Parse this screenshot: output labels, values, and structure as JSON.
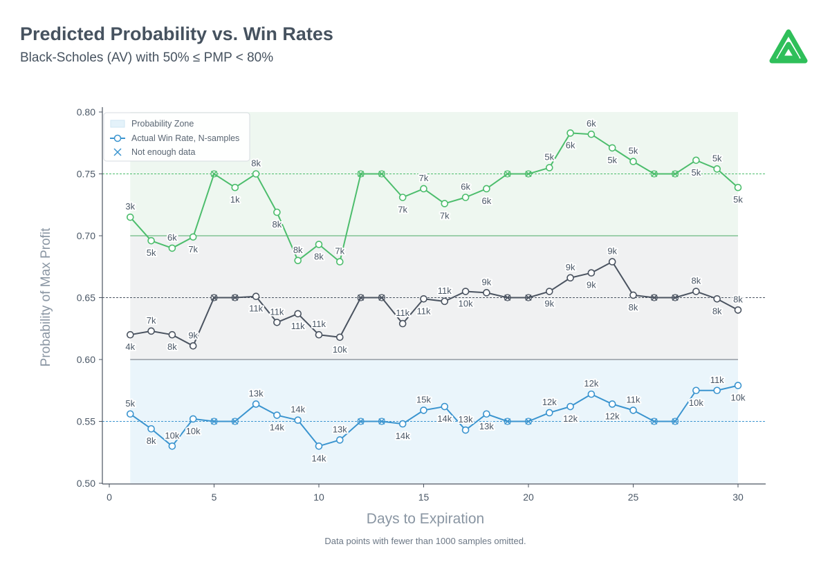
{
  "header": {
    "title": "Predicted Probability vs. Win Rates",
    "subtitle": "Black-Scholes (AV) with 50% ≤ PMP < 80%"
  },
  "footnote": "Data points with fewer than 1000 samples omitted.",
  "logo_icon": "tastytrade-logo-icon",
  "colors": {
    "green": "#4cbd6c",
    "gray": "#4a5360",
    "blue": "#3a94cf",
    "zone_green": "#eef7f0",
    "zone_gray": "#f0f1f2",
    "zone_blue": "#eaf5fb",
    "zone_line_green": "#9ccfab",
    "zone_line_gray": "#aab0b7",
    "zone_line_blue": "#a9d4ec",
    "axis": "#4a5360"
  },
  "chart_data": {
    "type": "line",
    "xlabel": "Days to Expiration",
    "ylabel": "Probability of Max Profit",
    "xlim": [
      -0.5,
      31.5
    ],
    "ylim": [
      0.5,
      0.8
    ],
    "xticks": [
      "0",
      "5",
      "10",
      "15",
      "20",
      "25",
      "30"
    ],
    "yticks": [
      "0.50",
      "0.55",
      "0.60",
      "0.65",
      "0.70",
      "0.75",
      "0.80"
    ],
    "grid": false,
    "legend_position": "top-left",
    "legend": [
      {
        "label": "Probability Zone",
        "kind": "zone"
      },
      {
        "label": "Actual Win Rate, N-samples",
        "kind": "line"
      },
      {
        "label": "Not enough data",
        "kind": "x"
      }
    ],
    "zones": [
      {
        "from": 0.7,
        "to": 0.8,
        "color": "zone_green",
        "line": "zone_line_green"
      },
      {
        "from": 0.6,
        "to": 0.7,
        "color": "zone_gray",
        "line": "zone_line_gray"
      },
      {
        "from": 0.5,
        "to": 0.6,
        "color": "zone_blue",
        "line": "zone_line_blue"
      }
    ],
    "zone_x_range": [
      1,
      30
    ],
    "reference_lines": [
      {
        "y": 0.75,
        "color": "green"
      },
      {
        "y": 0.65,
        "color": "gray"
      },
      {
        "y": 0.55,
        "color": "blue"
      }
    ],
    "series": [
      {
        "color": "green",
        "points": [
          {
            "x": 1,
            "y": 0.715,
            "label": "3k",
            "pos": "above"
          },
          {
            "x": 2,
            "y": 0.696,
            "label": "5k",
            "pos": "below"
          },
          {
            "x": 3,
            "y": 0.69,
            "label": "6k",
            "pos": "above"
          },
          {
            "x": 4,
            "y": 0.699,
            "label": "7k",
            "pos": "below"
          },
          {
            "x": 5,
            "y": 0.75,
            "missing": true
          },
          {
            "x": 6,
            "y": 0.739,
            "label": "1k",
            "pos": "below"
          },
          {
            "x": 7,
            "y": 0.75,
            "label": "8k",
            "pos": "above"
          },
          {
            "x": 8,
            "y": 0.719,
            "label": "8k",
            "pos": "below"
          },
          {
            "x": 9,
            "y": 0.68,
            "label": "8k",
            "pos": "above"
          },
          {
            "x": 10,
            "y": 0.693,
            "label": "8k",
            "pos": "below"
          },
          {
            "x": 11,
            "y": 0.679,
            "label": "7k",
            "pos": "above"
          },
          {
            "x": 12,
            "y": 0.75,
            "missing": true
          },
          {
            "x": 13,
            "y": 0.75,
            "missing": true
          },
          {
            "x": 14,
            "y": 0.731,
            "label": "7k",
            "pos": "below"
          },
          {
            "x": 15,
            "y": 0.738,
            "label": "7k",
            "pos": "above"
          },
          {
            "x": 16,
            "y": 0.726,
            "label": "7k",
            "pos": "below"
          },
          {
            "x": 17,
            "y": 0.731,
            "label": "6k",
            "pos": "above"
          },
          {
            "x": 18,
            "y": 0.738,
            "label": "6k",
            "pos": "below"
          },
          {
            "x": 19,
            "y": 0.75,
            "missing": true
          },
          {
            "x": 20,
            "y": 0.75,
            "missing": true
          },
          {
            "x": 21,
            "y": 0.755,
            "label": "5k",
            "pos": "above"
          },
          {
            "x": 22,
            "y": 0.783,
            "label": "6k",
            "pos": "below"
          },
          {
            "x": 23,
            "y": 0.782,
            "label": "6k",
            "pos": "above"
          },
          {
            "x": 24,
            "y": 0.771,
            "label": "5k",
            "pos": "below"
          },
          {
            "x": 25,
            "y": 0.76,
            "label": "5k",
            "pos": "above"
          },
          {
            "x": 26,
            "y": 0.75,
            "missing": true
          },
          {
            "x": 27,
            "y": 0.75,
            "missing": true
          },
          {
            "x": 28,
            "y": 0.761,
            "label": "5k",
            "pos": "below"
          },
          {
            "x": 29,
            "y": 0.754,
            "label": "5k",
            "pos": "above"
          },
          {
            "x": 30,
            "y": 0.739,
            "label": "5k",
            "pos": "below"
          }
        ]
      },
      {
        "color": "gray",
        "points": [
          {
            "x": 1,
            "y": 0.62,
            "label": "4k",
            "pos": "below"
          },
          {
            "x": 2,
            "y": 0.623,
            "label": "7k",
            "pos": "above"
          },
          {
            "x": 3,
            "y": 0.62,
            "label": "8k",
            "pos": "below"
          },
          {
            "x": 4,
            "y": 0.611,
            "label": "9k",
            "pos": "above"
          },
          {
            "x": 5,
            "y": 0.65,
            "missing": true
          },
          {
            "x": 6,
            "y": 0.65,
            "missing": true
          },
          {
            "x": 7,
            "y": 0.651,
            "label": "11k",
            "pos": "below"
          },
          {
            "x": 8,
            "y": 0.63,
            "label": "11k",
            "pos": "above"
          },
          {
            "x": 9,
            "y": 0.637,
            "label": "11k",
            "pos": "below"
          },
          {
            "x": 10,
            "y": 0.62,
            "label": "11k",
            "pos": "above"
          },
          {
            "x": 11,
            "y": 0.618,
            "label": "10k",
            "pos": "below"
          },
          {
            "x": 12,
            "y": 0.65,
            "missing": true
          },
          {
            "x": 13,
            "y": 0.65,
            "missing": true
          },
          {
            "x": 14,
            "y": 0.629,
            "label": "11k",
            "pos": "above"
          },
          {
            "x": 15,
            "y": 0.649,
            "label": "11k",
            "pos": "below"
          },
          {
            "x": 16,
            "y": 0.647,
            "label": "11k",
            "pos": "above"
          },
          {
            "x": 17,
            "y": 0.655,
            "label": "10k",
            "pos": "below"
          },
          {
            "x": 18,
            "y": 0.654,
            "label": "9k",
            "pos": "above"
          },
          {
            "x": 19,
            "y": 0.65,
            "missing": true
          },
          {
            "x": 20,
            "y": 0.65,
            "missing": true
          },
          {
            "x": 21,
            "y": 0.655,
            "label": "9k",
            "pos": "below"
          },
          {
            "x": 22,
            "y": 0.666,
            "label": "9k",
            "pos": "above"
          },
          {
            "x": 23,
            "y": 0.67,
            "label": "9k",
            "pos": "below"
          },
          {
            "x": 24,
            "y": 0.679,
            "label": "9k",
            "pos": "above"
          },
          {
            "x": 25,
            "y": 0.652,
            "label": "8k",
            "pos": "below"
          },
          {
            "x": 26,
            "y": 0.65,
            "missing": true
          },
          {
            "x": 27,
            "y": 0.65,
            "missing": true
          },
          {
            "x": 28,
            "y": 0.655,
            "label": "8k",
            "pos": "above"
          },
          {
            "x": 29,
            "y": 0.649,
            "label": "8k",
            "pos": "below"
          },
          {
            "x": 30,
            "y": 0.64,
            "label": "8k",
            "pos": "above"
          }
        ]
      },
      {
        "color": "blue",
        "points": [
          {
            "x": 1,
            "y": 0.556,
            "label": "5k",
            "pos": "above"
          },
          {
            "x": 2,
            "y": 0.544,
            "label": "8k",
            "pos": "below"
          },
          {
            "x": 3,
            "y": 0.53,
            "label": "10k",
            "pos": "above"
          },
          {
            "x": 4,
            "y": 0.552,
            "label": "10k",
            "pos": "below"
          },
          {
            "x": 5,
            "y": 0.55,
            "missing": true
          },
          {
            "x": 6,
            "y": 0.55,
            "missing": true
          },
          {
            "x": 7,
            "y": 0.564,
            "label": "13k",
            "pos": "above"
          },
          {
            "x": 8,
            "y": 0.555,
            "label": "14k",
            "pos": "below"
          },
          {
            "x": 9,
            "y": 0.551,
            "label": "14k",
            "pos": "above"
          },
          {
            "x": 10,
            "y": 0.53,
            "label": "14k",
            "pos": "below"
          },
          {
            "x": 11,
            "y": 0.535,
            "label": "13k",
            "pos": "above"
          },
          {
            "x": 12,
            "y": 0.55,
            "missing": true
          },
          {
            "x": 13,
            "y": 0.55,
            "missing": true
          },
          {
            "x": 14,
            "y": 0.548,
            "label": "14k",
            "pos": "below"
          },
          {
            "x": 15,
            "y": 0.559,
            "label": "15k",
            "pos": "above"
          },
          {
            "x": 16,
            "y": 0.562,
            "label": "14k",
            "pos": "below"
          },
          {
            "x": 17,
            "y": 0.543,
            "label": "13k",
            "pos": "above"
          },
          {
            "x": 18,
            "y": 0.556,
            "label": "13k",
            "pos": "below"
          },
          {
            "x": 19,
            "y": 0.55,
            "missing": true
          },
          {
            "x": 20,
            "y": 0.55,
            "missing": true
          },
          {
            "x": 21,
            "y": 0.557,
            "label": "12k",
            "pos": "above"
          },
          {
            "x": 22,
            "y": 0.562,
            "label": "12k",
            "pos": "below"
          },
          {
            "x": 23,
            "y": 0.572,
            "label": "12k",
            "pos": "above"
          },
          {
            "x": 24,
            "y": 0.564,
            "label": "12k",
            "pos": "below"
          },
          {
            "x": 25,
            "y": 0.559,
            "label": "11k",
            "pos": "above"
          },
          {
            "x": 26,
            "y": 0.55,
            "missing": true
          },
          {
            "x": 27,
            "y": 0.55,
            "missing": true
          },
          {
            "x": 28,
            "y": 0.575,
            "label": "10k",
            "pos": "below"
          },
          {
            "x": 29,
            "y": 0.575,
            "label": "11k",
            "pos": "above"
          },
          {
            "x": 30,
            "y": 0.579,
            "label": "10k",
            "pos": "below"
          }
        ]
      }
    ]
  }
}
